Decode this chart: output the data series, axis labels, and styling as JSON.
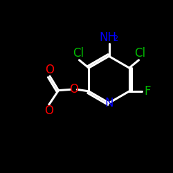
{
  "bg_color": "#000000",
  "bond_color": "#ffffff",
  "bond_width": 2.2,
  "atom_colors": {
    "N": "#0000ff",
    "O": "#ff0000",
    "Cl": "#00bb00",
    "F": "#00bb00",
    "NH2": "#0000ff"
  },
  "font_size_atoms": 12,
  "font_size_sub": 8,
  "figsize": [
    2.5,
    2.5
  ],
  "dpi": 100
}
